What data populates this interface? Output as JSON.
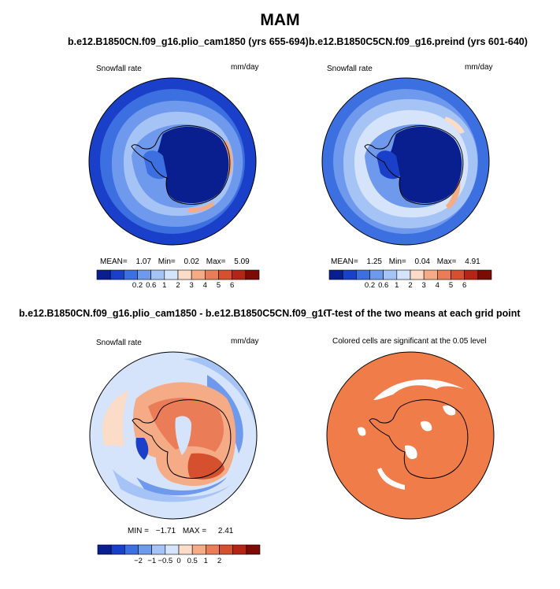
{
  "title": "MAM",
  "panels": [
    {
      "title": "b.e12.B1850CN.f09_g16.plio_cam1850 (yrs 655-694)",
      "left_label": "Snowfall rate",
      "right_label": "mm/day",
      "stats": {
        "mean_label": "MEAN=",
        "mean": "1.07",
        "min_label": "Min=",
        "min": "0.02",
        "max_label": "Max=",
        "max": "5.09"
      }
    },
    {
      "title": "b.e12.B1850C5CN.f09_g16.preind (yrs 601-640)",
      "left_label": "Snowfall rate",
      "right_label": "mm/day",
      "stats": {
        "mean_label": "MEAN=",
        "mean": "1.25",
        "min_label": "Min=",
        "min": "0.04",
        "max_label": "Max=",
        "max": "4.91"
      }
    },
    {
      "title": "b.e12.B1850CN.f09_g16.plio_cam1850 - b.e12.B1850C5CN.f09_g16.preind",
      "left_label": "Snowfall rate",
      "right_label": "mm/day",
      "stats": {
        "min_label": "MIN =",
        "min": "−1.71",
        "max_label": "MAX =",
        "max": "2.41"
      }
    },
    {
      "title": "T-test of the two means at each grid point",
      "left_label": "Colored cells are significant at the 0.05 level"
    }
  ],
  "chart_data": [
    {
      "type": "heatmap",
      "projection": "south-polar-stereographic",
      "variable": "Snowfall rate",
      "units": "mm/day",
      "colorbar_levels": [
        0.2,
        0.6,
        1,
        2,
        3,
        4,
        5,
        6
      ],
      "colorbar_tick_labels": [
        "0.2",
        "0.6",
        "1",
        "2",
        "3",
        "4",
        "5",
        "6"
      ],
      "colorbar_colors": [
        "#0a1f8f",
        "#1a3fc8",
        "#3c6fe0",
        "#6e99ec",
        "#a5c3f5",
        "#d5e4fa",
        "#fadcc8",
        "#f4ab86",
        "#ea7d58",
        "#d5502e",
        "#b32615",
        "#7c0a05"
      ],
      "mean": 1.07,
      "min": 0.02,
      "max": 5.09
    },
    {
      "type": "heatmap",
      "projection": "south-polar-stereographic",
      "variable": "Snowfall rate",
      "units": "mm/day",
      "colorbar_levels": [
        0.2,
        0.6,
        1,
        2,
        3,
        4,
        5,
        6
      ],
      "colorbar_tick_labels": [
        "0.2",
        "0.6",
        "1",
        "2",
        "3",
        "4",
        "5",
        "6"
      ],
      "colorbar_colors": [
        "#0a1f8f",
        "#1a3fc8",
        "#3c6fe0",
        "#6e99ec",
        "#a5c3f5",
        "#d5e4fa",
        "#fadcc8",
        "#f4ab86",
        "#ea7d58",
        "#d5502e",
        "#b32615",
        "#7c0a05"
      ],
      "mean": 1.25,
      "min": 0.04,
      "max": 4.91
    },
    {
      "type": "heatmap",
      "projection": "south-polar-stereographic",
      "variable": "Snowfall rate difference",
      "units": "mm/day",
      "colorbar_tick_labels": [
        "−2",
        "−1",
        "−0.5",
        "0",
        "0.5",
        "1",
        "2"
      ],
      "colorbar_colors": [
        "#0a1f8f",
        "#1a3fc8",
        "#3c6fe0",
        "#6e99ec",
        "#a5c3f5",
        "#d5e4fa",
        "#fadcc8",
        "#f4ab86",
        "#ea7d58",
        "#d5502e",
        "#b32615",
        "#7c0a05"
      ],
      "min": -1.71,
      "max": 2.41
    },
    {
      "type": "heatmap",
      "projection": "south-polar-stereographic",
      "variable": "T-test significance",
      "significance_level": 0.05,
      "significant_color": "#f07c4a"
    }
  ]
}
